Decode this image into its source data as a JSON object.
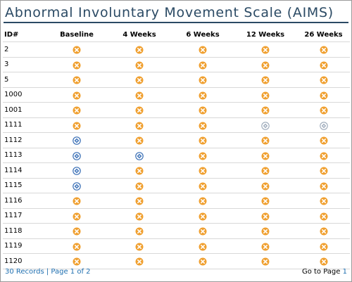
{
  "title": "Abnormal Involuntary Movement Scale (AIMS)",
  "colors": {
    "missing": "#f0a030",
    "complete": "#3a6fb5",
    "partial": "#9aa8b8",
    "title": "#2b4a64",
    "link": "#1f6fb0"
  },
  "columns": [
    "ID#",
    "Baseline",
    "4 Weeks",
    "6 Weeks",
    "12 Weeks",
    "26 Weeks"
  ],
  "status_icons": {
    "x": "missing-x-icon",
    "c": "complete-diamond-icon",
    "p": "partial-diamond-icon"
  },
  "rows": [
    {
      "id": "2",
      "cells": [
        "x",
        "x",
        "x",
        "x",
        "x"
      ]
    },
    {
      "id": "3",
      "cells": [
        "x",
        "x",
        "x",
        "x",
        "x"
      ]
    },
    {
      "id": "5",
      "cells": [
        "x",
        "x",
        "x",
        "x",
        "x"
      ]
    },
    {
      "id": "1000",
      "cells": [
        "x",
        "x",
        "x",
        "x",
        "x"
      ]
    },
    {
      "id": "1001",
      "cells": [
        "x",
        "x",
        "x",
        "x",
        "x"
      ]
    },
    {
      "id": "1111",
      "cells": [
        "x",
        "x",
        "x",
        "p",
        "p"
      ]
    },
    {
      "id": "1112",
      "cells": [
        "c",
        "x",
        "x",
        "x",
        "x"
      ]
    },
    {
      "id": "1113",
      "cells": [
        "c",
        "c",
        "x",
        "x",
        "x"
      ]
    },
    {
      "id": "1114",
      "cells": [
        "c",
        "x",
        "x",
        "x",
        "x"
      ]
    },
    {
      "id": "1115",
      "cells": [
        "c",
        "x",
        "x",
        "x",
        "x"
      ]
    },
    {
      "id": "1116",
      "cells": [
        "x",
        "x",
        "x",
        "x",
        "x"
      ]
    },
    {
      "id": "1117",
      "cells": [
        "x",
        "x",
        "x",
        "x",
        "x"
      ]
    },
    {
      "id": "1118",
      "cells": [
        "x",
        "x",
        "x",
        "x",
        "x"
      ]
    },
    {
      "id": "1119",
      "cells": [
        "x",
        "x",
        "x",
        "x",
        "x"
      ]
    },
    {
      "id": "1120",
      "cells": [
        "x",
        "x",
        "x",
        "x",
        "x"
      ]
    }
  ],
  "footer": {
    "records": "30 Records",
    "separator": "|",
    "page_info": "Page 1 of 2",
    "goto_label": "Go to Page",
    "goto_page": "1"
  }
}
